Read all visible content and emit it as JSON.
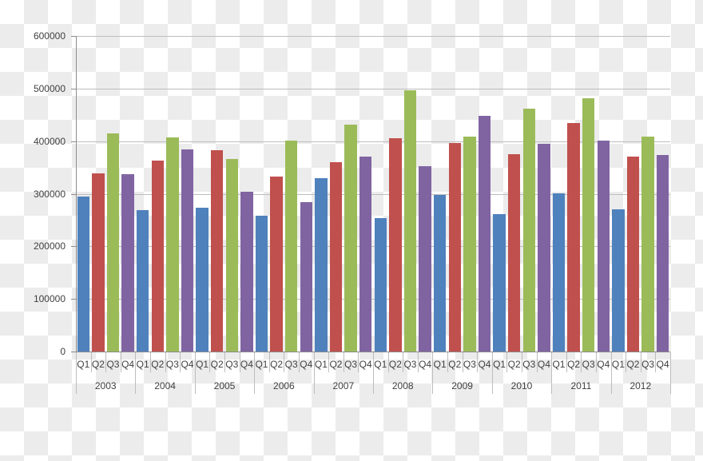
{
  "chart_data": {
    "type": "bar",
    "title": "",
    "xlabel": "",
    "ylabel": "",
    "ylim": [
      0,
      600000
    ],
    "yticks": [
      0,
      100000,
      200000,
      300000,
      400000,
      500000,
      600000
    ],
    "ytick_labels": [
      "0",
      "100000",
      "200000",
      "300000",
      "400000",
      "500000",
      "600000"
    ],
    "grid": true,
    "legend": null,
    "x_groups": [
      "2003",
      "2004",
      "2005",
      "2006",
      "2007",
      "2008",
      "2009",
      "2010",
      "2011",
      "2012"
    ],
    "x_subcategories": [
      "Q1",
      "Q2",
      "Q3",
      "Q4"
    ],
    "categories": [
      "2003 Q1",
      "2003 Q2",
      "2003 Q3",
      "2003 Q4",
      "2004 Q1",
      "2004 Q2",
      "2004 Q3",
      "2004 Q4",
      "2005 Q1",
      "2005 Q2",
      "2005 Q3",
      "2005 Q4",
      "2006 Q1",
      "2006 Q2",
      "2006 Q3",
      "2006 Q4",
      "2007 Q1",
      "2007 Q2",
      "2007 Q3",
      "2007 Q4",
      "2008 Q1",
      "2008 Q2",
      "2008 Q3",
      "2008 Q4",
      "2009 Q1",
      "2009 Q2",
      "2009 Q3",
      "2009 Q4",
      "2010 Q1",
      "2010 Q2",
      "2010 Q3",
      "2010 Q4",
      "2011 Q1",
      "2011 Q2",
      "2011 Q3",
      "2011 Q4",
      "2012 Q1",
      "2012 Q2",
      "2012 Q3",
      "2012 Q4"
    ],
    "values": [
      295000,
      339000,
      415000,
      337000,
      269000,
      363000,
      407000,
      385000,
      273000,
      383000,
      366000,
      304000,
      258000,
      332000,
      401000,
      284000,
      329000,
      360000,
      432000,
      370000,
      253000,
      406000,
      496000,
      352000,
      298000,
      397000,
      409000,
      448000,
      261000,
      375000,
      462000,
      395000,
      301000,
      435000,
      481000,
      401000,
      271000,
      371000,
      409000,
      374000
    ],
    "quarter_colors": {
      "Q1": "#4f81bd",
      "Q2": "#c0504d",
      "Q3": "#9bbb59",
      "Q4": "#8064a2"
    }
  }
}
